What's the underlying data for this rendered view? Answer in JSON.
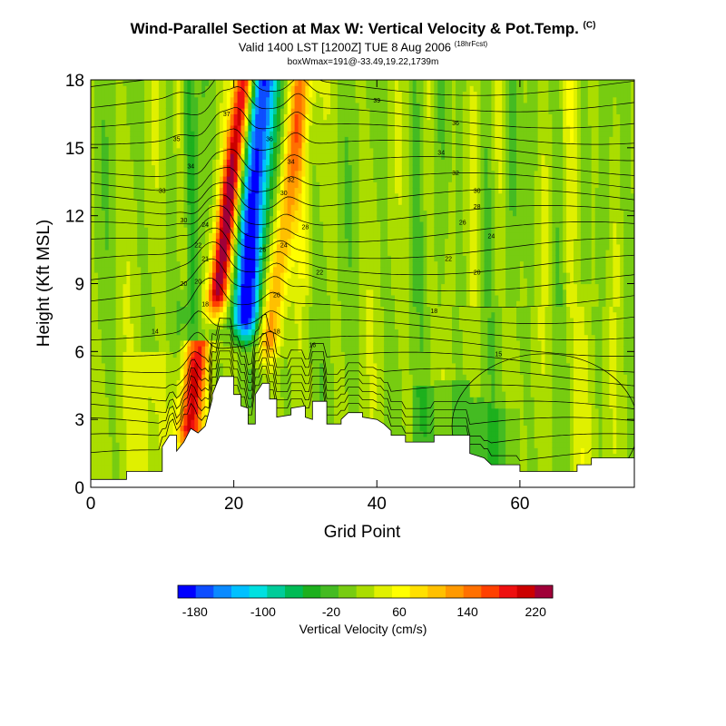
{
  "header": {
    "title": "Wind-Parallel Section at Max W: Vertical Velocity & Pot.Temp.",
    "title_sup": "(C)",
    "subtitle": "Valid 1400 LST [1200Z] TUE 8 Aug 2006",
    "subtitle_sup": "(18hrFcst)",
    "info": "boxWmax=191@-33.49,19.22,1739m"
  },
  "chart_data": {
    "type": "heatmap",
    "xlabel": "Grid Point",
    "ylabel": "Height (Kft MSL)",
    "xlim": [
      0,
      76
    ],
    "ylim": [
      0,
      18
    ],
    "x_ticks": [
      "0",
      "20",
      "40",
      "60"
    ],
    "y_ticks": [
      "0",
      "3",
      "6",
      "9",
      "12",
      "15",
      "18"
    ],
    "colorbar": {
      "label": "Vertical Velocity (cm/s)",
      "ticks": [
        "-180",
        "-100",
        "-20",
        "60",
        "140",
        "220"
      ],
      "range": [
        -200,
        240
      ],
      "colors": [
        "#0000ff",
        "#0d4dff",
        "#0a8aff",
        "#00c0ff",
        "#00e0e0",
        "#00cc99",
        "#00bb55",
        "#1db01d",
        "#44bb22",
        "#77cc11",
        "#aadd00",
        "#e0f000",
        "#ffff00",
        "#ffe000",
        "#ffc000",
        "#ff9900",
        "#ff7000",
        "#ff4000",
        "#ee1010",
        "#cc0000",
        "#a00038"
      ]
    },
    "terrain_kft": [
      [
        0,
        0.35
      ],
      [
        5,
        0.35
      ],
      [
        5,
        0.7
      ],
      [
        10,
        0.7
      ],
      [
        10,
        1.8
      ],
      [
        11,
        2.3
      ],
      [
        12,
        2.3
      ],
      [
        12,
        1.6
      ],
      [
        13,
        2.0
      ],
      [
        14,
        2.6
      ],
      [
        15,
        2.4
      ],
      [
        16,
        2.7
      ],
      [
        17,
        3.9
      ],
      [
        17,
        4.1
      ],
      [
        18,
        4.9
      ],
      [
        20,
        4.9
      ],
      [
        20,
        4.1
      ],
      [
        21,
        4.1
      ],
      [
        21,
        3.6
      ],
      [
        22,
        3.5
      ],
      [
        22,
        2.8
      ],
      [
        23,
        2.8
      ],
      [
        23,
        4.1
      ],
      [
        24,
        4.6
      ],
      [
        25,
        4.6
      ],
      [
        25,
        3.9
      ],
      [
        26,
        3.9
      ],
      [
        26,
        3.1
      ],
      [
        28,
        3.2
      ],
      [
        28,
        3.5
      ],
      [
        30,
        3.6
      ],
      [
        30,
        3.1
      ],
      [
        31,
        3.0
      ],
      [
        31,
        3.8
      ],
      [
        33,
        3.8
      ],
      [
        33,
        2.8
      ],
      [
        35,
        2.8
      ],
      [
        35,
        3.0
      ],
      [
        36,
        3.3
      ],
      [
        38,
        3.3
      ],
      [
        38,
        3.1
      ],
      [
        40,
        3.0
      ],
      [
        41,
        2.8
      ],
      [
        42,
        2.5
      ],
      [
        42,
        2.3
      ],
      [
        44,
        2.3
      ],
      [
        44,
        2.0
      ],
      [
        48,
        2.0
      ],
      [
        48,
        2.3
      ],
      [
        53,
        2.3
      ],
      [
        53,
        1.5
      ],
      [
        55,
        1.3
      ],
      [
        56,
        1.0
      ],
      [
        60,
        1.0
      ],
      [
        60,
        0.7
      ],
      [
        68,
        0.7
      ],
      [
        68,
        1.0
      ],
      [
        70,
        1.0
      ],
      [
        70,
        1.3
      ],
      [
        76,
        1.3
      ]
    ],
    "updrafts": [
      {
        "x": 13.5,
        "base_kft": 2.0,
        "top_kft": 5.5,
        "tilt": 1.3,
        "width": 1.2,
        "w": 190
      },
      {
        "x": 17.5,
        "base_kft": 8,
        "top_kft": 18,
        "tilt": 1.6,
        "width": 1.0,
        "w": 220
      },
      {
        "x": 21.5,
        "base_kft": 7,
        "top_kft": 18,
        "tilt": 0.9,
        "width": 1.4,
        "w": -200
      },
      {
        "x": 24.8,
        "base_kft": 6,
        "top_kft": 18,
        "tilt": 1.6,
        "width": 1.1,
        "w": 110
      },
      {
        "x": 14.7,
        "base_kft": 6,
        "top_kft": 18,
        "tilt": -0.4,
        "width": 0.7,
        "w": -60
      },
      {
        "x": 13,
        "base_kft": 9,
        "top_kft": 18,
        "tilt": -0.3,
        "width": 0.6,
        "w": 45
      },
      {
        "x": 30,
        "base_kft": 9,
        "top_kft": 18,
        "tilt": -0.5,
        "width": 0.7,
        "w": 30
      }
    ],
    "theta_labels": [
      {
        "x": 40,
        "y": 17.0,
        "t": "39"
      },
      {
        "x": 51,
        "y": 16.0,
        "t": "36"
      },
      {
        "x": 49,
        "y": 14.7,
        "t": "34"
      },
      {
        "x": 51,
        "y": 13.8,
        "t": "32"
      },
      {
        "x": 54,
        "y": 13.0,
        "t": "30"
      },
      {
        "x": 54,
        "y": 12.3,
        "t": "28"
      },
      {
        "x": 52,
        "y": 11.6,
        "t": "26"
      },
      {
        "x": 56,
        "y": 11.0,
        "t": "24"
      },
      {
        "x": 50,
        "y": 10.0,
        "t": "22"
      },
      {
        "x": 54,
        "y": 9.4,
        "t": "20"
      },
      {
        "x": 48,
        "y": 7.7,
        "t": "18"
      },
      {
        "x": 57,
        "y": 5.8,
        "t": "15"
      },
      {
        "x": 31,
        "y": 6.2,
        "t": "16"
      },
      {
        "x": 9,
        "y": 6.8,
        "t": "14"
      },
      {
        "x": 19,
        "y": 16.4,
        "t": "37"
      },
      {
        "x": 12,
        "y": 15.3,
        "t": "35"
      },
      {
        "x": 14,
        "y": 14.1,
        "t": "34"
      },
      {
        "x": 10,
        "y": 13.0,
        "t": "33"
      },
      {
        "x": 13,
        "y": 11.7,
        "t": "30"
      },
      {
        "x": 16,
        "y": 11.5,
        "t": "24"
      },
      {
        "x": 15,
        "y": 10.6,
        "t": "22"
      },
      {
        "x": 16,
        "y": 10.0,
        "t": "21"
      },
      {
        "x": 13,
        "y": 8.9,
        "t": "20"
      },
      {
        "x": 15,
        "y": 9.0,
        "t": "20"
      },
      {
        "x": 16,
        "y": 8.0,
        "t": "18"
      },
      {
        "x": 25,
        "y": 15.3,
        "t": "36"
      },
      {
        "x": 28,
        "y": 14.3,
        "t": "34"
      },
      {
        "x": 28,
        "y": 13.5,
        "t": "32"
      },
      {
        "x": 27,
        "y": 12.9,
        "t": "30"
      },
      {
        "x": 30,
        "y": 11.4,
        "t": "28"
      },
      {
        "x": 24,
        "y": 10.4,
        "t": "26"
      },
      {
        "x": 27,
        "y": 10.6,
        "t": "24"
      },
      {
        "x": 32,
        "y": 9.4,
        "t": "22"
      },
      {
        "x": 26,
        "y": 8.4,
        "t": "20"
      },
      {
        "x": 26,
        "y": 6.8,
        "t": "18"
      }
    ]
  }
}
